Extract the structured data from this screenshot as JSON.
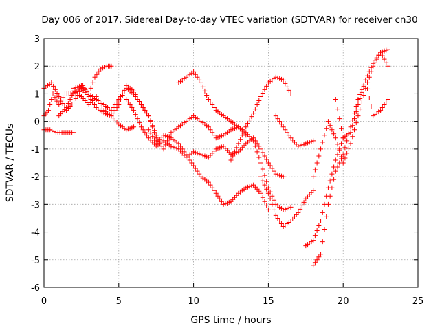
{
  "chart_data": {
    "type": "scatter",
    "title": "Day 006 of 2017, Sidereal Day-to-day VTEC variation (SDTVAR) for receiver cn30",
    "xlabel": "GPS time / hours",
    "ylabel": "SDTVAR / TECUs",
    "xlim": [
      0,
      25
    ],
    "ylim": [
      -6,
      3
    ],
    "xticks": [
      "0",
      "5",
      "10",
      "15",
      "20",
      "25"
    ],
    "yticks": [
      "3",
      "2",
      "1",
      "0",
      "-1",
      "-2",
      "-3",
      "-4",
      "-5",
      "-6"
    ],
    "grid": true,
    "marker": "+",
    "color": "#ff0000",
    "series": [
      {
        "x": [
          0.0,
          0.3,
          0.6,
          1.0,
          1.4,
          1.8,
          2.2,
          2.6,
          3.0,
          3.4,
          3.8,
          4.2,
          4.5
        ],
        "y": [
          0.2,
          0.4,
          1.0,
          0.6,
          1.0,
          1.0,
          1.1,
          1.3,
          1.0,
          1.6,
          1.9,
          2.0,
          2.0
        ]
      },
      {
        "x": [
          0.0,
          0.4,
          0.8,
          1.2,
          1.6,
          2.0
        ],
        "y": [
          -0.3,
          -0.3,
          -0.4,
          -0.4,
          -0.4,
          -0.4
        ]
      },
      {
        "x": [
          0.0,
          0.5,
          1.0,
          1.5,
          2.0,
          2.5,
          3.0,
          3.5,
          4.0,
          4.5,
          5.0,
          5.5,
          6.0
        ],
        "y": [
          1.2,
          1.4,
          0.9,
          0.4,
          0.7,
          1.2,
          0.9,
          0.5,
          0.3,
          0.2,
          -0.1,
          -0.3,
          -0.2
        ]
      },
      {
        "x": [
          1.0,
          1.5,
          2.0,
          2.5,
          3.0,
          3.5,
          4.0,
          4.5,
          5.0,
          5.5,
          6.0,
          6.5,
          7.0,
          7.5
        ],
        "y": [
          0.2,
          0.5,
          1.1,
          0.9,
          0.6,
          0.9,
          0.4,
          0.2,
          0.6,
          1.3,
          1.1,
          0.6,
          0.2,
          -0.5
        ]
      },
      {
        "x": [
          2.0,
          2.5,
          3.0,
          3.5,
          4.0,
          4.5,
          5.0,
          5.5,
          6.0,
          6.5,
          7.0,
          7.5,
          8.0,
          8.5,
          9.0,
          9.5,
          10.0,
          10.5,
          11.0,
          11.5,
          12.0,
          12.5,
          13.0,
          13.5
        ],
        "y": [
          1.2,
          1.3,
          1.0,
          0.8,
          0.6,
          0.4,
          0.8,
          1.2,
          1.0,
          0.6,
          0.2,
          -0.6,
          -1.0,
          -0.4,
          -0.2,
          0.0,
          0.2,
          0.0,
          -0.2,
          -0.6,
          -0.5,
          -0.3,
          -0.2,
          -0.5
        ]
      },
      {
        "x": [
          5.5,
          6.0,
          6.5,
          7.0,
          7.5,
          8.0,
          8.5,
          9.0,
          9.5,
          10.0,
          10.5,
          11.0,
          11.5,
          12.0,
          12.5,
          13.0,
          13.5,
          14.0,
          14.5,
          15.0,
          15.5,
          16.0
        ],
        "y": [
          0.8,
          0.4,
          -0.2,
          -0.6,
          -0.9,
          -0.7,
          -0.9,
          -1.0,
          -1.3,
          -1.1,
          -1.2,
          -1.3,
          -1.0,
          -0.9,
          -1.2,
          -1.1,
          -0.8,
          -0.6,
          -1.0,
          -1.5,
          -1.9,
          -2.0
        ]
      },
      {
        "x": [
          7.0,
          7.5,
          8.0,
          8.5,
          9.0,
          9.5,
          10.0,
          10.5,
          11.0,
          11.5,
          12.0,
          12.5,
          13.0,
          13.5,
          14.0,
          14.5,
          15.0
        ],
        "y": [
          -0.3,
          -0.8,
          -0.5,
          -0.6,
          -0.8,
          -1.2,
          -1.6,
          -2.0,
          -2.2,
          -2.6,
          -3.0,
          -2.9,
          -2.6,
          -2.4,
          -2.3,
          -2.6,
          -3.2
        ]
      },
      {
        "x": [
          9.0,
          9.5,
          10.0,
          10.5,
          11.0,
          11.5,
          12.0,
          12.5,
          13.0,
          13.5,
          14.0,
          14.5,
          15.0,
          15.5,
          16.0,
          16.5
        ],
        "y": [
          1.4,
          1.6,
          1.8,
          1.4,
          0.8,
          0.4,
          0.2,
          0.0,
          -0.2,
          -0.4,
          -0.7,
          -1.5,
          -2.4,
          -3.0,
          -3.2,
          -3.1
        ]
      },
      {
        "x": [
          12.5,
          13.0,
          13.5,
          14.0,
          14.5,
          15.0,
          15.5,
          16.0,
          16.5
        ],
        "y": [
          -1.4,
          -0.8,
          -0.2,
          0.3,
          0.9,
          1.4,
          1.6,
          1.5,
          1.0
        ]
      },
      {
        "x": [
          14.5,
          15.0,
          15.5,
          16.0,
          16.5,
          17.0,
          17.5,
          18.0
        ],
        "y": [
          -2.0,
          -2.6,
          -3.4,
          -3.8,
          -3.6,
          -3.3,
          -2.8,
          -2.5
        ]
      },
      {
        "x": [
          15.5,
          16.0,
          16.5,
          17.0,
          17.5,
          18.0
        ],
        "y": [
          0.2,
          -0.2,
          -0.6,
          -0.9,
          -0.8,
          -0.7
        ]
      },
      {
        "x": [
          17.5,
          18.0,
          18.5,
          19.0,
          19.5,
          20.0
        ],
        "y": [
          -4.5,
          -4.3,
          -3.6,
          -2.4,
          -1.4,
          -0.6
        ]
      },
      {
        "x": [
          18.0,
          18.5,
          19.0,
          19.5,
          20.0,
          20.5,
          21.0,
          21.5,
          22.0,
          22.5,
          23.0
        ],
        "y": [
          -5.2,
          -4.8,
          -3.0,
          -1.8,
          -1.2,
          -0.2,
          0.8,
          1.5,
          2.1,
          2.5,
          2.6
        ]
      },
      {
        "x": [
          18.0,
          18.5,
          19.0,
          19.5,
          20.0,
          20.5,
          21.0,
          21.5,
          22.0,
          22.5,
          23.0
        ],
        "y": [
          -2.0,
          -1.0,
          0.0,
          -0.6,
          -1.5,
          -0.8,
          0.2,
          1.2,
          2.0,
          2.5,
          2.0
        ]
      },
      {
        "x": [
          19.5,
          20.0,
          20.5,
          21.0,
          21.5,
          22.0,
          22.5,
          23.0
        ],
        "y": [
          0.8,
          -0.6,
          -0.4,
          0.6,
          1.5,
          0.2,
          0.4,
          0.8
        ]
      }
    ]
  }
}
